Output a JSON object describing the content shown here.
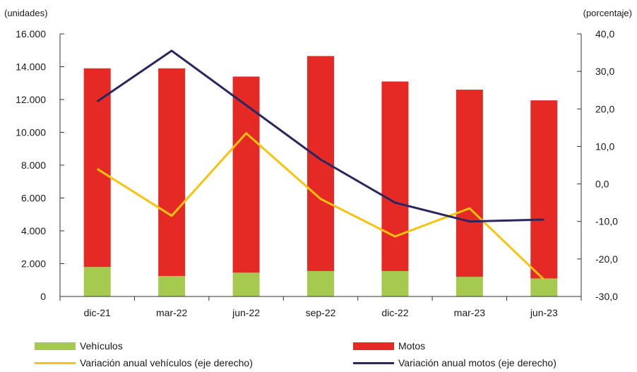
{
  "chart_data": {
    "type": "bar",
    "stacked": true,
    "categories": [
      "dic-21",
      "mar-22",
      "jun-22",
      "sep-22",
      "dic-22",
      "mar-23",
      "jun-23"
    ],
    "left_axis_unit": "(unidades)",
    "right_axis_unit": "(porcentaje)",
    "ylim": [
      0,
      16000
    ],
    "y2lim": [
      -30,
      40
    ],
    "yticks": [
      "0",
      "2.000",
      "4.000",
      "6.000",
      "8.000",
      "10.000",
      "12.000",
      "14.000",
      "16.000"
    ],
    "y2ticks": [
      "-30,0",
      "-20,0",
      "-10,0",
      "0,0",
      "10,0",
      "20,0",
      "30,0",
      "40,0"
    ],
    "grid": false,
    "legend_placement": "bottom",
    "series": [
      {
        "name": "Vehículos",
        "kind": "bar",
        "axis": "left",
        "color": "#a6c94f",
        "values": [
          1800,
          1250,
          1450,
          1550,
          1550,
          1200,
          1100
        ]
      },
      {
        "name": "Motos",
        "kind": "bar",
        "axis": "left",
        "color": "#e52a25",
        "values": [
          12100,
          12650,
          11950,
          13100,
          11550,
          11400,
          10850
        ]
      },
      {
        "name": "Variación anual vehículos (eje derecho)",
        "kind": "line",
        "axis": "right",
        "color": "#f7c30f",
        "values": [
          4.0,
          -8.5,
          13.5,
          -4.0,
          -14.0,
          -6.5,
          -25.5
        ]
      },
      {
        "name": "Variación anual motos (eje derecho)",
        "kind": "line",
        "axis": "right",
        "color": "#2a2660",
        "values": [
          22.0,
          35.5,
          21.0,
          6.5,
          -5.0,
          -10.0,
          -9.5
        ]
      }
    ]
  }
}
